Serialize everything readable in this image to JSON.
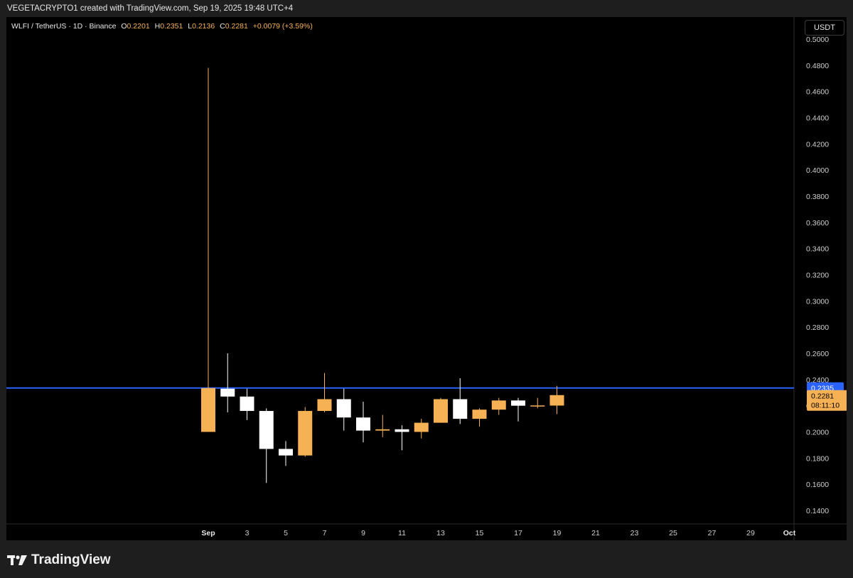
{
  "header": {
    "attribution": "VEGETACRYPTO1 created with TradingView.com, Sep 19, 2025 19:48 UTC+4"
  },
  "legend": {
    "symbol": "WLFI / TetherUS · 1D · Binance",
    "o_label": "O",
    "o_value": "0.2201",
    "h_label": "H",
    "h_value": "0.2351",
    "l_label": "L",
    "l_value": "0.2136",
    "c_label": "C",
    "c_value": "0.2281",
    "change": "+0.0079 (+3.59%)"
  },
  "currency_button": "USDT",
  "footer": {
    "brand": "TradingView"
  },
  "colors": {
    "up": "#f7b155",
    "down": "#ffffff",
    "level_line": "#2962ff",
    "background": "#000000",
    "axis_text": "#cfcfcf"
  },
  "chart_data": {
    "type": "candlestick",
    "ylim": [
      0.13,
      0.51
    ],
    "y_ticks": [
      "0.1400",
      "0.1600",
      "0.1800",
      "0.2000",
      "0.2200",
      "0.2400",
      "0.2600",
      "0.2800",
      "0.3000",
      "0.3200",
      "0.3400",
      "0.3600",
      "0.3800",
      "0.4000",
      "0.4200",
      "0.4400",
      "0.4600",
      "0.4800",
      "0.5000"
    ],
    "x_ticks": [
      "Sep",
      "3",
      "5",
      "7",
      "9",
      "11",
      "13",
      "15",
      "17",
      "19",
      "21",
      "23",
      "25",
      "27",
      "29",
      "Oct"
    ],
    "horizontal_level": {
      "value": 0.2335,
      "label": "0.2335"
    },
    "last_price": {
      "value": 0.2281,
      "label": "0.2281",
      "countdown": "08:11:10"
    },
    "candles": [
      {
        "date": "Sep 1",
        "o": 0.2,
        "h": 0.478,
        "l": 0.2,
        "c": 0.2335
      },
      {
        "date": "Sep 2",
        "o": 0.233,
        "h": 0.26,
        "l": 0.215,
        "c": 0.227
      },
      {
        "date": "Sep 3",
        "o": 0.227,
        "h": 0.233,
        "l": 0.209,
        "c": 0.216
      },
      {
        "date": "Sep 4",
        "o": 0.216,
        "h": 0.218,
        "l": 0.161,
        "c": 0.187
      },
      {
        "date": "Sep 5",
        "o": 0.187,
        "h": 0.193,
        "l": 0.174,
        "c": 0.182
      },
      {
        "date": "Sep 6",
        "o": 0.182,
        "h": 0.219,
        "l": 0.181,
        "c": 0.216
      },
      {
        "date": "Sep 7",
        "o": 0.216,
        "h": 0.245,
        "l": 0.215,
        "c": 0.225
      },
      {
        "date": "Sep 8",
        "o": 0.225,
        "h": 0.233,
        "l": 0.201,
        "c": 0.211
      },
      {
        "date": "Sep 9",
        "o": 0.211,
        "h": 0.223,
        "l": 0.192,
        "c": 0.201
      },
      {
        "date": "Sep 10",
        "o": 0.201,
        "h": 0.213,
        "l": 0.196,
        "c": 0.202
      },
      {
        "date": "Sep 11",
        "o": 0.202,
        "h": 0.205,
        "l": 0.186,
        "c": 0.2
      },
      {
        "date": "Sep 12",
        "o": 0.2,
        "h": 0.21,
        "l": 0.195,
        "c": 0.207
      },
      {
        "date": "Sep 13",
        "o": 0.207,
        "h": 0.226,
        "l": 0.207,
        "c": 0.225
      },
      {
        "date": "Sep 14",
        "o": 0.225,
        "h": 0.241,
        "l": 0.206,
        "c": 0.21
      },
      {
        "date": "Sep 15",
        "o": 0.21,
        "h": 0.218,
        "l": 0.204,
        "c": 0.217
      },
      {
        "date": "Sep 16",
        "o": 0.217,
        "h": 0.226,
        "l": 0.213,
        "c": 0.224
      },
      {
        "date": "Sep 17",
        "o": 0.224,
        "h": 0.226,
        "l": 0.208,
        "c": 0.22
      },
      {
        "date": "Sep 18",
        "o": 0.22,
        "h": 0.226,
        "l": 0.218,
        "c": 0.2202
      },
      {
        "date": "Sep 19",
        "o": 0.2201,
        "h": 0.2351,
        "l": 0.2136,
        "c": 0.2281
      }
    ]
  }
}
